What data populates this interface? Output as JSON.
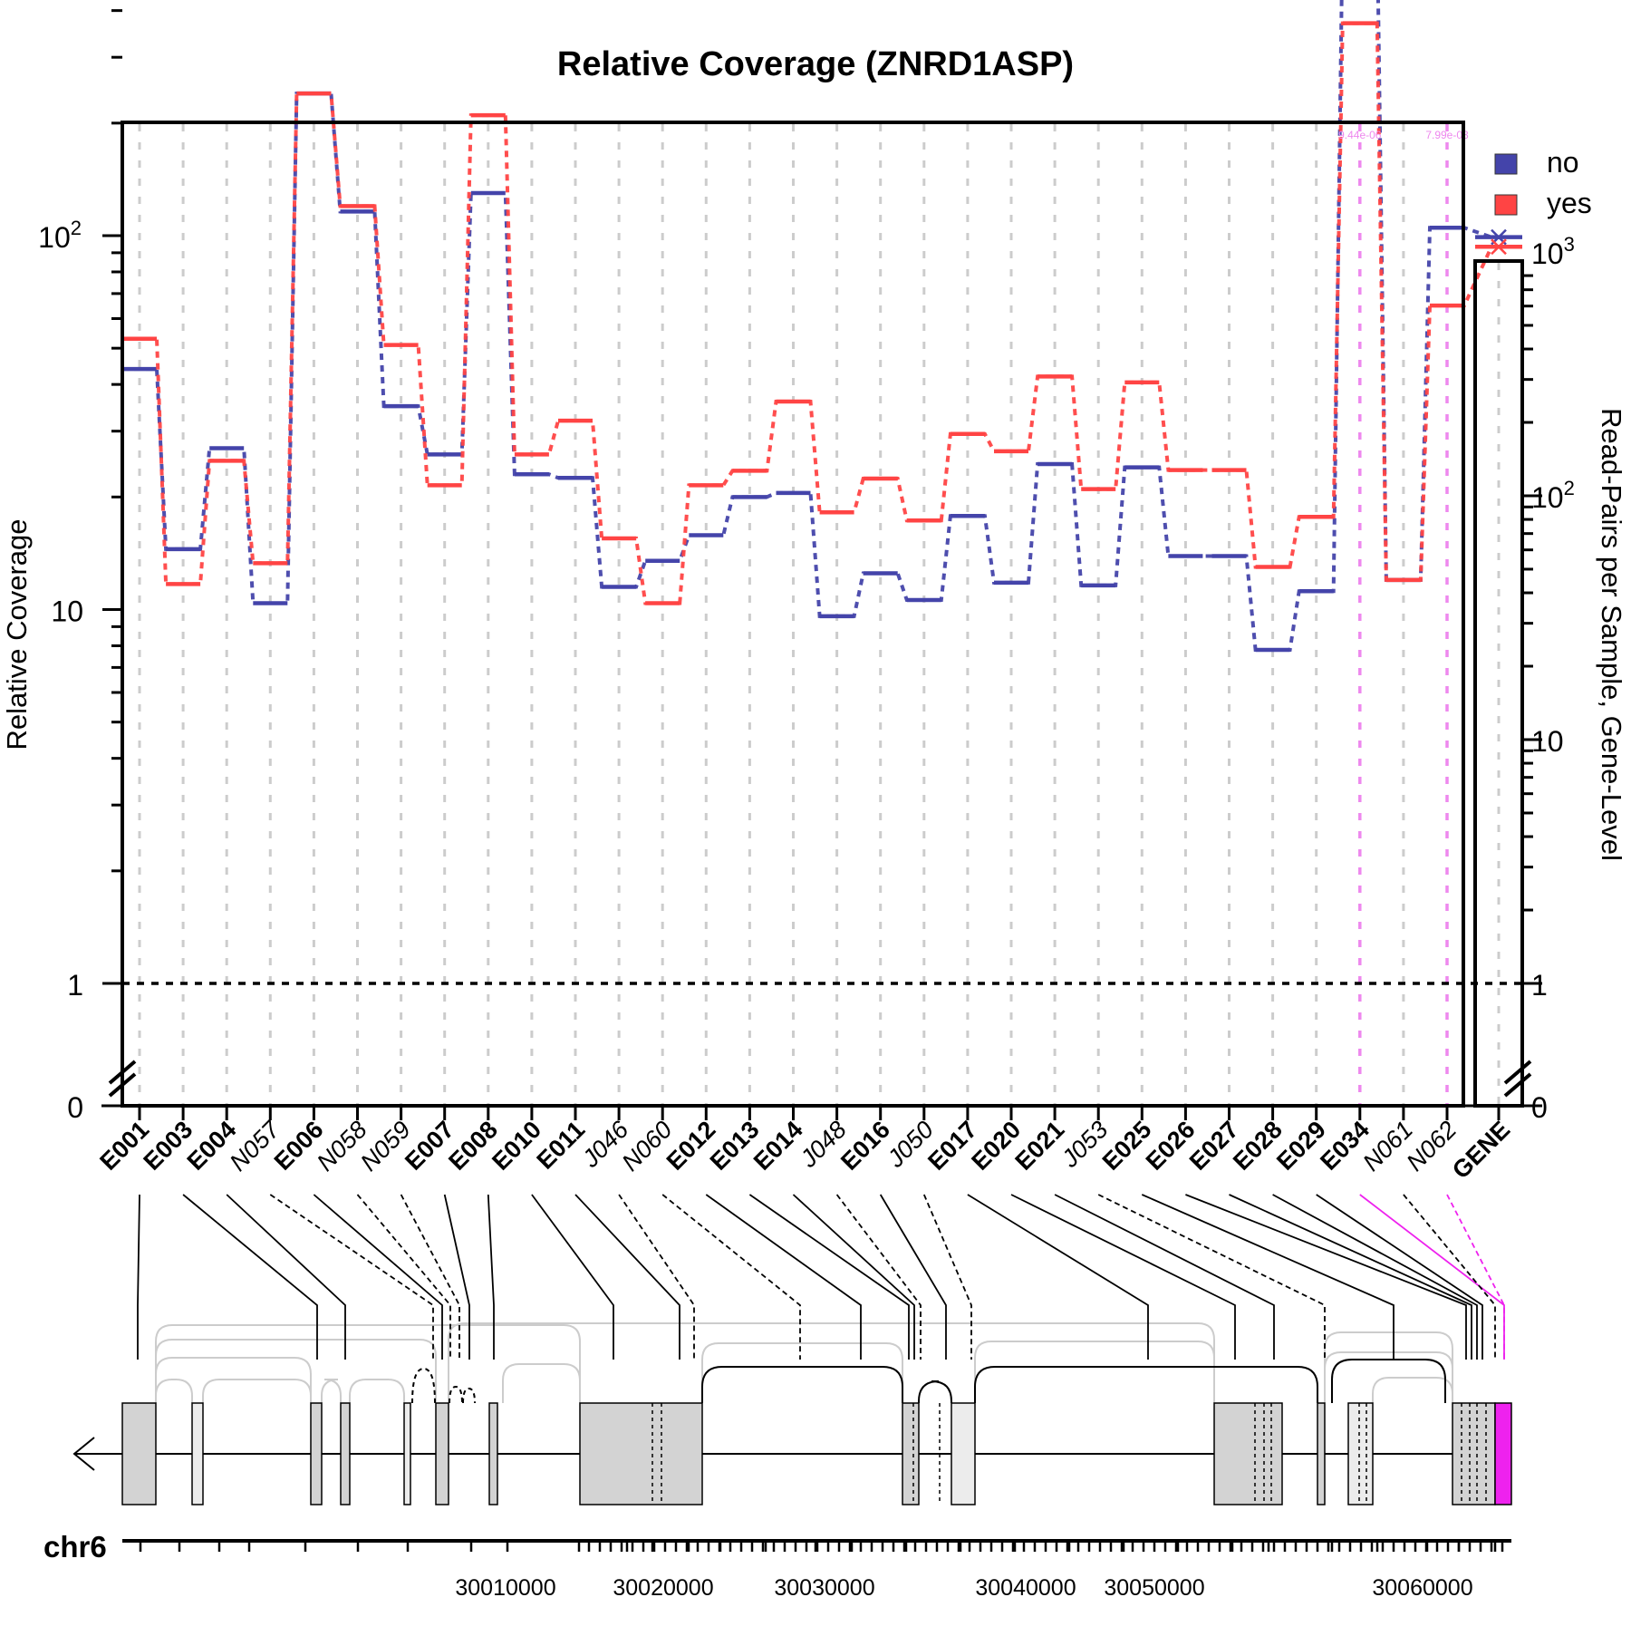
{
  "chart_data": {
    "type": "line",
    "title": "Relative Coverage (ZNRD1ASP)",
    "ylabel": "Relative Coverage",
    "y2label": "Read-Pairs per Sample, Gene-Level",
    "yscale": "log",
    "y_ticks": [
      {
        "value": 0,
        "label": "0"
      },
      {
        "value": 1,
        "label": "1"
      },
      {
        "value": 10,
        "label": "10"
      },
      {
        "value": 100,
        "label": "10",
        "exp": "2"
      }
    ],
    "y2_ticks": [
      {
        "value": 0,
        "label": "0"
      },
      {
        "value": 1,
        "label": "1"
      },
      {
        "value": 10,
        "label": "10"
      },
      {
        "value": 100,
        "label": "10",
        "exp": "2"
      },
      {
        "value": 1000,
        "label": "10",
        "exp": "3"
      }
    ],
    "legend": {
      "position": "top-right"
    },
    "features": [
      {
        "label": "E001",
        "type": "exon"
      },
      {
        "label": "E003",
        "type": "exon"
      },
      {
        "label": "E004",
        "type": "exon"
      },
      {
        "label": "N057",
        "type": "novel"
      },
      {
        "label": "E006",
        "type": "exon"
      },
      {
        "label": "N058",
        "type": "novel"
      },
      {
        "label": "N059",
        "type": "novel"
      },
      {
        "label": "E007",
        "type": "exon"
      },
      {
        "label": "E008",
        "type": "exon"
      },
      {
        "label": "E010",
        "type": "exon"
      },
      {
        "label": "E011",
        "type": "exon"
      },
      {
        "label": "J046",
        "type": "junction"
      },
      {
        "label": "N060",
        "type": "novel"
      },
      {
        "label": "E012",
        "type": "exon"
      },
      {
        "label": "E013",
        "type": "exon"
      },
      {
        "label": "E014",
        "type": "exon"
      },
      {
        "label": "J048",
        "type": "junction"
      },
      {
        "label": "E016",
        "type": "exon"
      },
      {
        "label": "J050",
        "type": "junction"
      },
      {
        "label": "E017",
        "type": "exon"
      },
      {
        "label": "E020",
        "type": "exon"
      },
      {
        "label": "E021",
        "type": "exon"
      },
      {
        "label": "J053",
        "type": "junction"
      },
      {
        "label": "E025",
        "type": "exon"
      },
      {
        "label": "E026",
        "type": "exon"
      },
      {
        "label": "E027",
        "type": "exon"
      },
      {
        "label": "E028",
        "type": "exon"
      },
      {
        "label": "E029",
        "type": "exon"
      },
      {
        "label": "E034",
        "type": "exon",
        "significant": true
      },
      {
        "label": "N061",
        "type": "novel"
      },
      {
        "label": "N062",
        "type": "novel",
        "significant": true
      }
    ],
    "gene_label": "GENE",
    "series": [
      {
        "name": "no",
        "color": "#4444aa",
        "values": [
          44,
          14.5,
          27,
          10.4,
          240,
          116,
          35,
          26,
          130,
          23,
          22.5,
          11.5,
          13.5,
          15.8,
          20,
          20.5,
          9.6,
          12.5,
          10.6,
          17.8,
          11.8,
          24.5,
          11.6,
          24,
          13.9,
          13.9,
          7.8,
          11.2,
          680,
          12,
          105
        ],
        "gene_value": 1150
      },
      {
        "name": "yes",
        "color": "#ff4444",
        "values": [
          53,
          11.7,
          25,
          13.3,
          240,
          120,
          51,
          21.5,
          210,
          26,
          32,
          15.5,
          10.4,
          21.5,
          23.5,
          36,
          18.2,
          22.4,
          17.3,
          29.5,
          26.5,
          42,
          21,
          40.5,
          23.6,
          23.6,
          13,
          17.7,
          370,
          12,
          65
        ],
        "gene_value": 1050
      }
    ],
    "pvalue_labels": [
      {
        "feature": "E034",
        "text": "9.44e-06"
      },
      {
        "feature": "N062",
        "text": "7.99e-03"
      }
    ],
    "genome": {
      "chrom": "chr6",
      "ticks": [
        "30010000",
        "30020000",
        "30030000",
        "30040000",
        "30050000",
        "30060000"
      ]
    }
  }
}
